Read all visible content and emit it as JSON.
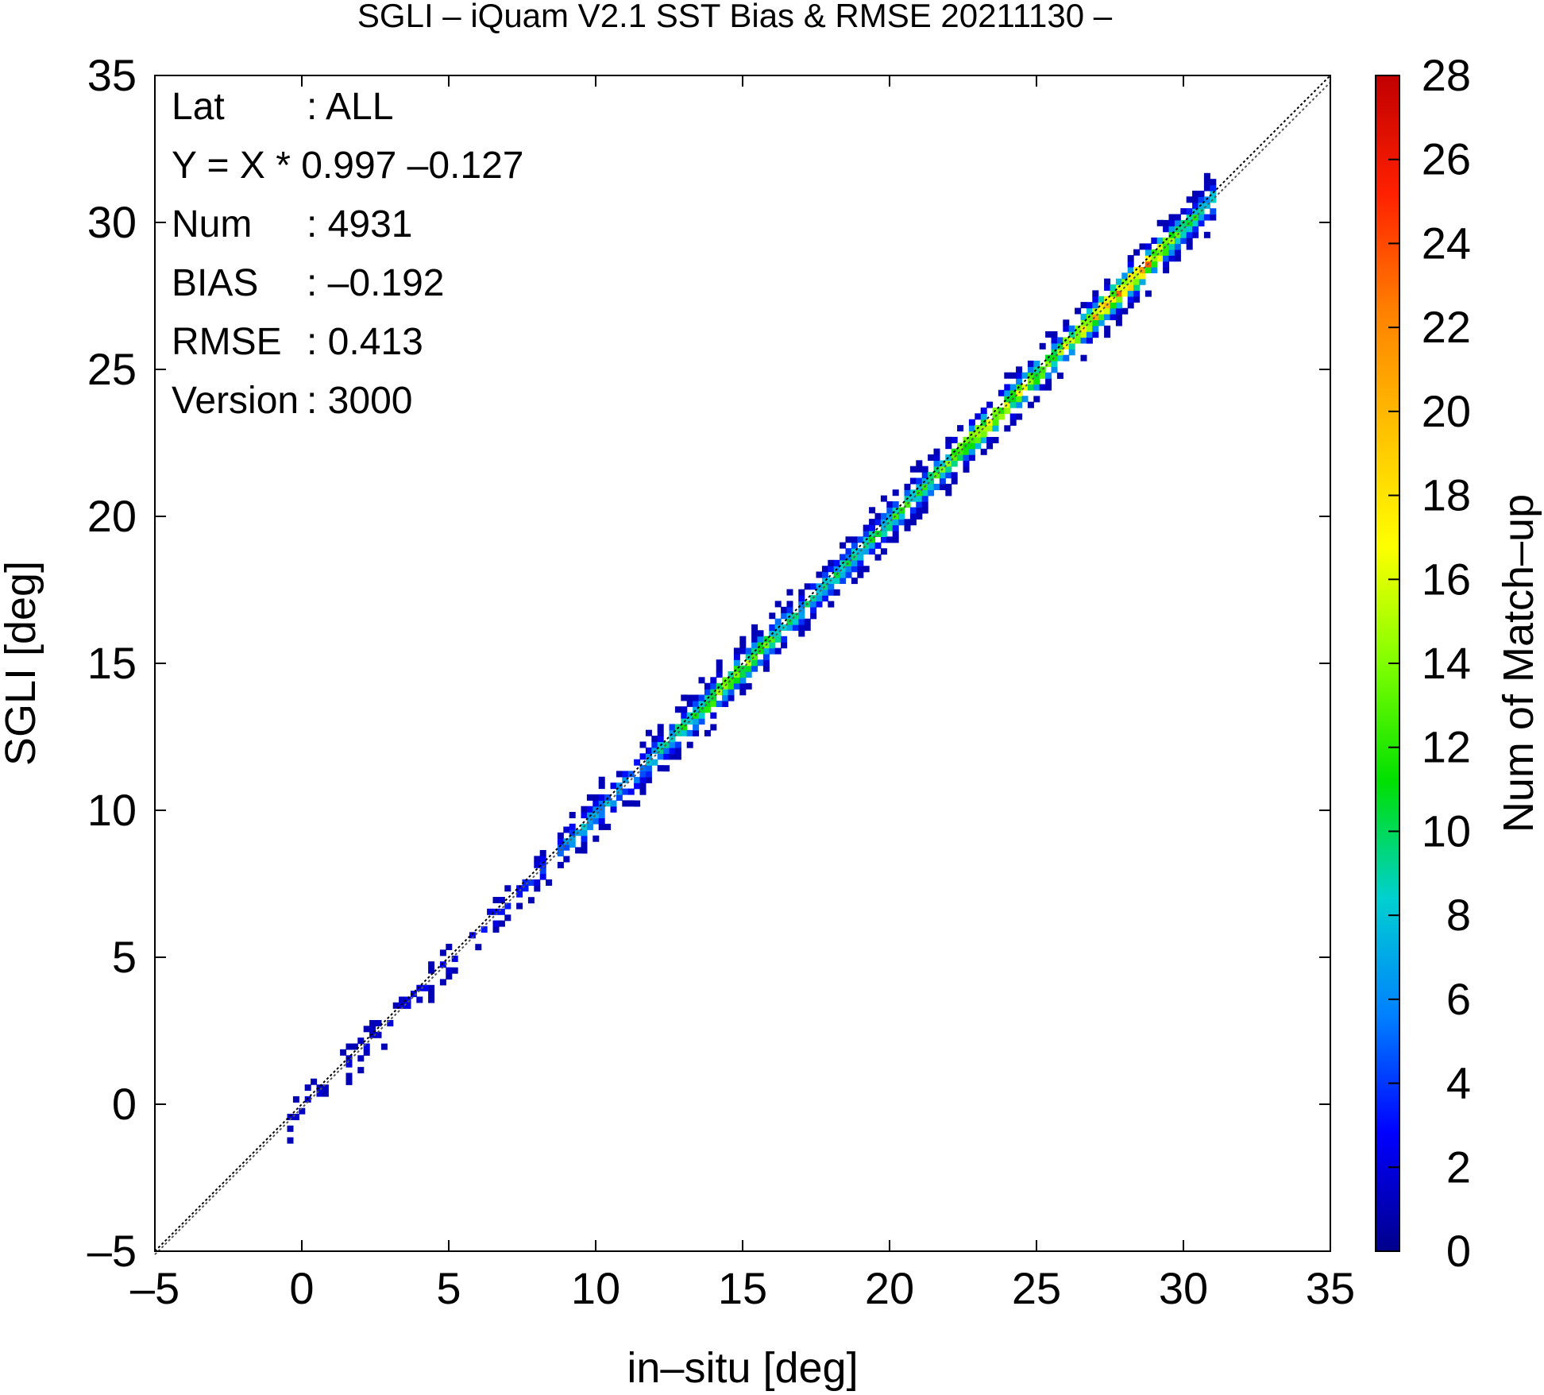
{
  "chart_data": {
    "type": "heatmap",
    "title": "SGLI – iQuam V2.1 SST Bias & RMSE 20211130 –",
    "xlabel": "in–situ [deg]",
    "ylabel": "SGLI [deg]",
    "xlim": [
      -5,
      35
    ],
    "ylim": [
      -5,
      35
    ],
    "x_ticks": [
      "–5",
      "0",
      "5",
      "10",
      "15",
      "20",
      "25",
      "30",
      "35"
    ],
    "y_ticks": [
      "–5",
      "0",
      "5",
      "10",
      "15",
      "20",
      "25",
      "30",
      "35"
    ],
    "x_tick_values": [
      -5,
      0,
      5,
      10,
      15,
      20,
      25,
      30,
      35
    ],
    "y_tick_values": [
      -5,
      0,
      5,
      10,
      15,
      20,
      25,
      30,
      35
    ],
    "colorbar": {
      "label": "Num of Match–up",
      "range": [
        0,
        28
      ],
      "tick_values": [
        0,
        2,
        4,
        6,
        8,
        10,
        12,
        14,
        16,
        18,
        20,
        22,
        24,
        26,
        28
      ],
      "ticks": [
        "0",
        "2",
        "4",
        "6",
        "8",
        "10",
        "12",
        "14",
        "16",
        "18",
        "20",
        "22",
        "24",
        "26",
        "28"
      ],
      "colors": [
        "#00008b",
        "#0000ff",
        "#0080ff",
        "#00d0d0",
        "#00e000",
        "#80ff00",
        "#ffff00",
        "#ffc000",
        "#ff8000",
        "#ff2000",
        "#c00000"
      ]
    },
    "lines": [
      {
        "name": "1:1 line",
        "style": "dotted",
        "color": "#000000"
      },
      {
        "name": "regression",
        "slope": 0.997,
        "intercept": -0.127,
        "style": "dotted",
        "color": "#555555"
      }
    ],
    "density_ridge": [
      {
        "x": 0.5,
        "peak": 2
      },
      {
        "x": 4.5,
        "peak": 3
      },
      {
        "x": 7.5,
        "peak": 4
      },
      {
        "x": 9.5,
        "peak": 9
      },
      {
        "x": 11.5,
        "peak": 8
      },
      {
        "x": 14.5,
        "peak": 18
      },
      {
        "x": 17.0,
        "peak": 10
      },
      {
        "x": 19.5,
        "peak": 12
      },
      {
        "x": 21.5,
        "peak": 14
      },
      {
        "x": 23.0,
        "peak": 20
      },
      {
        "x": 25.5,
        "peak": 16
      },
      {
        "x": 27.0,
        "peak": 22
      },
      {
        "x": 28.5,
        "peak": 26
      },
      {
        "x": 30.0,
        "peak": 12
      }
    ]
  },
  "stats": [
    {
      "label": "Lat",
      "value": ": ALL"
    },
    {
      "label": "Y = X * 0.997 –0.127",
      "value": ""
    },
    {
      "label": "Num",
      "value": ": 4931"
    },
    {
      "label": "BIAS",
      "value": ": –0.192"
    },
    {
      "label": "RMSE",
      "value": ": 0.413"
    },
    {
      "label": "Version",
      "value": ": 3000"
    }
  ]
}
